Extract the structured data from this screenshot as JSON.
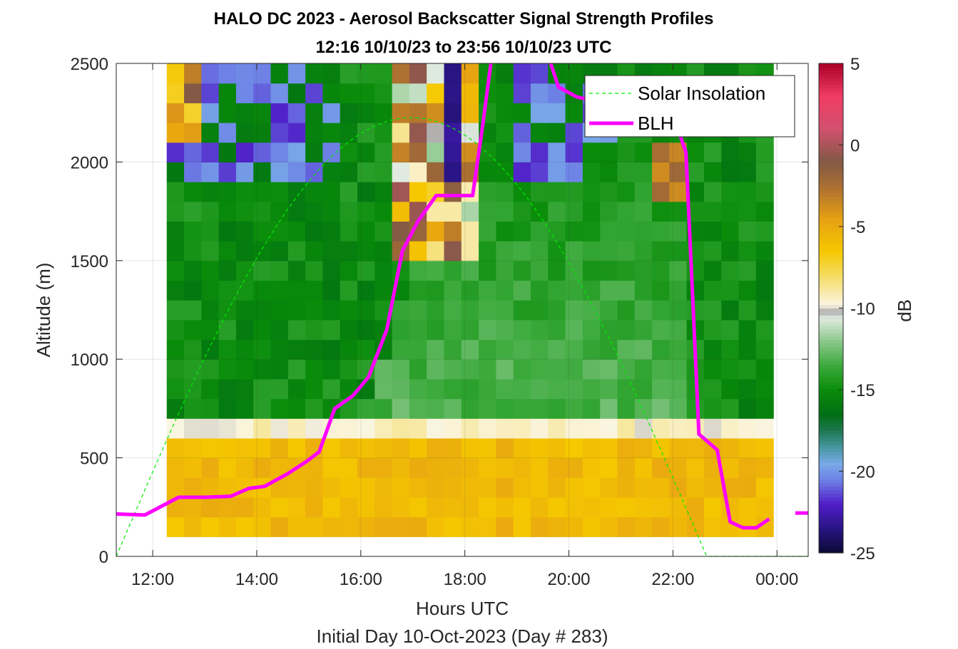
{
  "chart_data": {
    "type": "heatmap",
    "title": "HALO DC 2023 - Aerosol Backscatter Signal Strength Profiles",
    "subtitle": "12:16 10/10/23 to 23:56 10/10/23  UTC",
    "xlabel": "Hours UTC",
    "xlabel2": "Initial Day 10-Oct-2023 (Day # 283)",
    "ylabel": "Altitude (m)",
    "colorbar_label": "dB",
    "xlim": [
      11.3,
      24.6
    ],
    "ylim": [
      0,
      2500
    ],
    "xticks": [
      12,
      14,
      16,
      18,
      20,
      22,
      24
    ],
    "xtick_labels": [
      "12:00",
      "14:00",
      "16:00",
      "18:00",
      "20:00",
      "22:00",
      "00:00"
    ],
    "yticks": [
      0,
      500,
      1000,
      1500,
      2000,
      2500
    ],
    "ytick_labels": [
      "0",
      "500",
      "1000",
      "1500",
      "2000",
      "2500"
    ],
    "clim": [
      -25,
      5
    ],
    "cticks": [
      -25,
      -20,
      -15,
      -10,
      -5,
      0,
      5
    ],
    "ctick_labels": [
      "-25",
      "-20",
      "-15",
      "-10",
      "-5",
      "0",
      "5"
    ],
    "grid": true,
    "legend_position": "top-right",
    "legend": [
      {
        "name": "Solar Insolation",
        "color": "#00ee00",
        "style": "dashed"
      },
      {
        "name": "BLH",
        "color": "#ff00ff",
        "style": "solid"
      }
    ],
    "heatmap_extent": {
      "x_start": 12.27,
      "x_end": 23.93,
      "y_start": 100,
      "y_end": 2500
    },
    "blh_series": {
      "name": "BLH",
      "x": [
        11.3,
        11.85,
        12.5,
        13.0,
        13.5,
        13.85,
        14.15,
        14.6,
        14.95,
        15.2,
        15.5,
        15.85,
        16.15,
        16.5,
        16.8,
        17.1,
        17.45,
        17.6,
        18.15,
        18.35,
        18.5
      ],
      "y": [
        215,
        210,
        300,
        300,
        305,
        345,
        355,
        420,
        480,
        530,
        750,
        815,
        910,
        1150,
        1550,
        1700,
        1830,
        1830,
        1830,
        2200,
        2500
      ]
    },
    "blh_series_2": {
      "x": [
        19.65,
        19.8,
        20.15,
        20.5,
        22.05,
        22.25,
        22.4,
        22.5,
        22.85,
        23.1,
        23.35,
        23.6,
        23.85
      ],
      "y": [
        2500,
        2380,
        2330,
        2310,
        2200,
        2050,
        1200,
        620,
        540,
        175,
        145,
        145,
        190
      ]
    },
    "blh_series_3": {
      "x": [
        24.35,
        24.6
      ],
      "y": [
        220,
        220
      ]
    },
    "solar_series": {
      "name": "Solar Insolation",
      "sunrise": 11.3,
      "sunset": 22.65,
      "peak": 2225
    }
  }
}
